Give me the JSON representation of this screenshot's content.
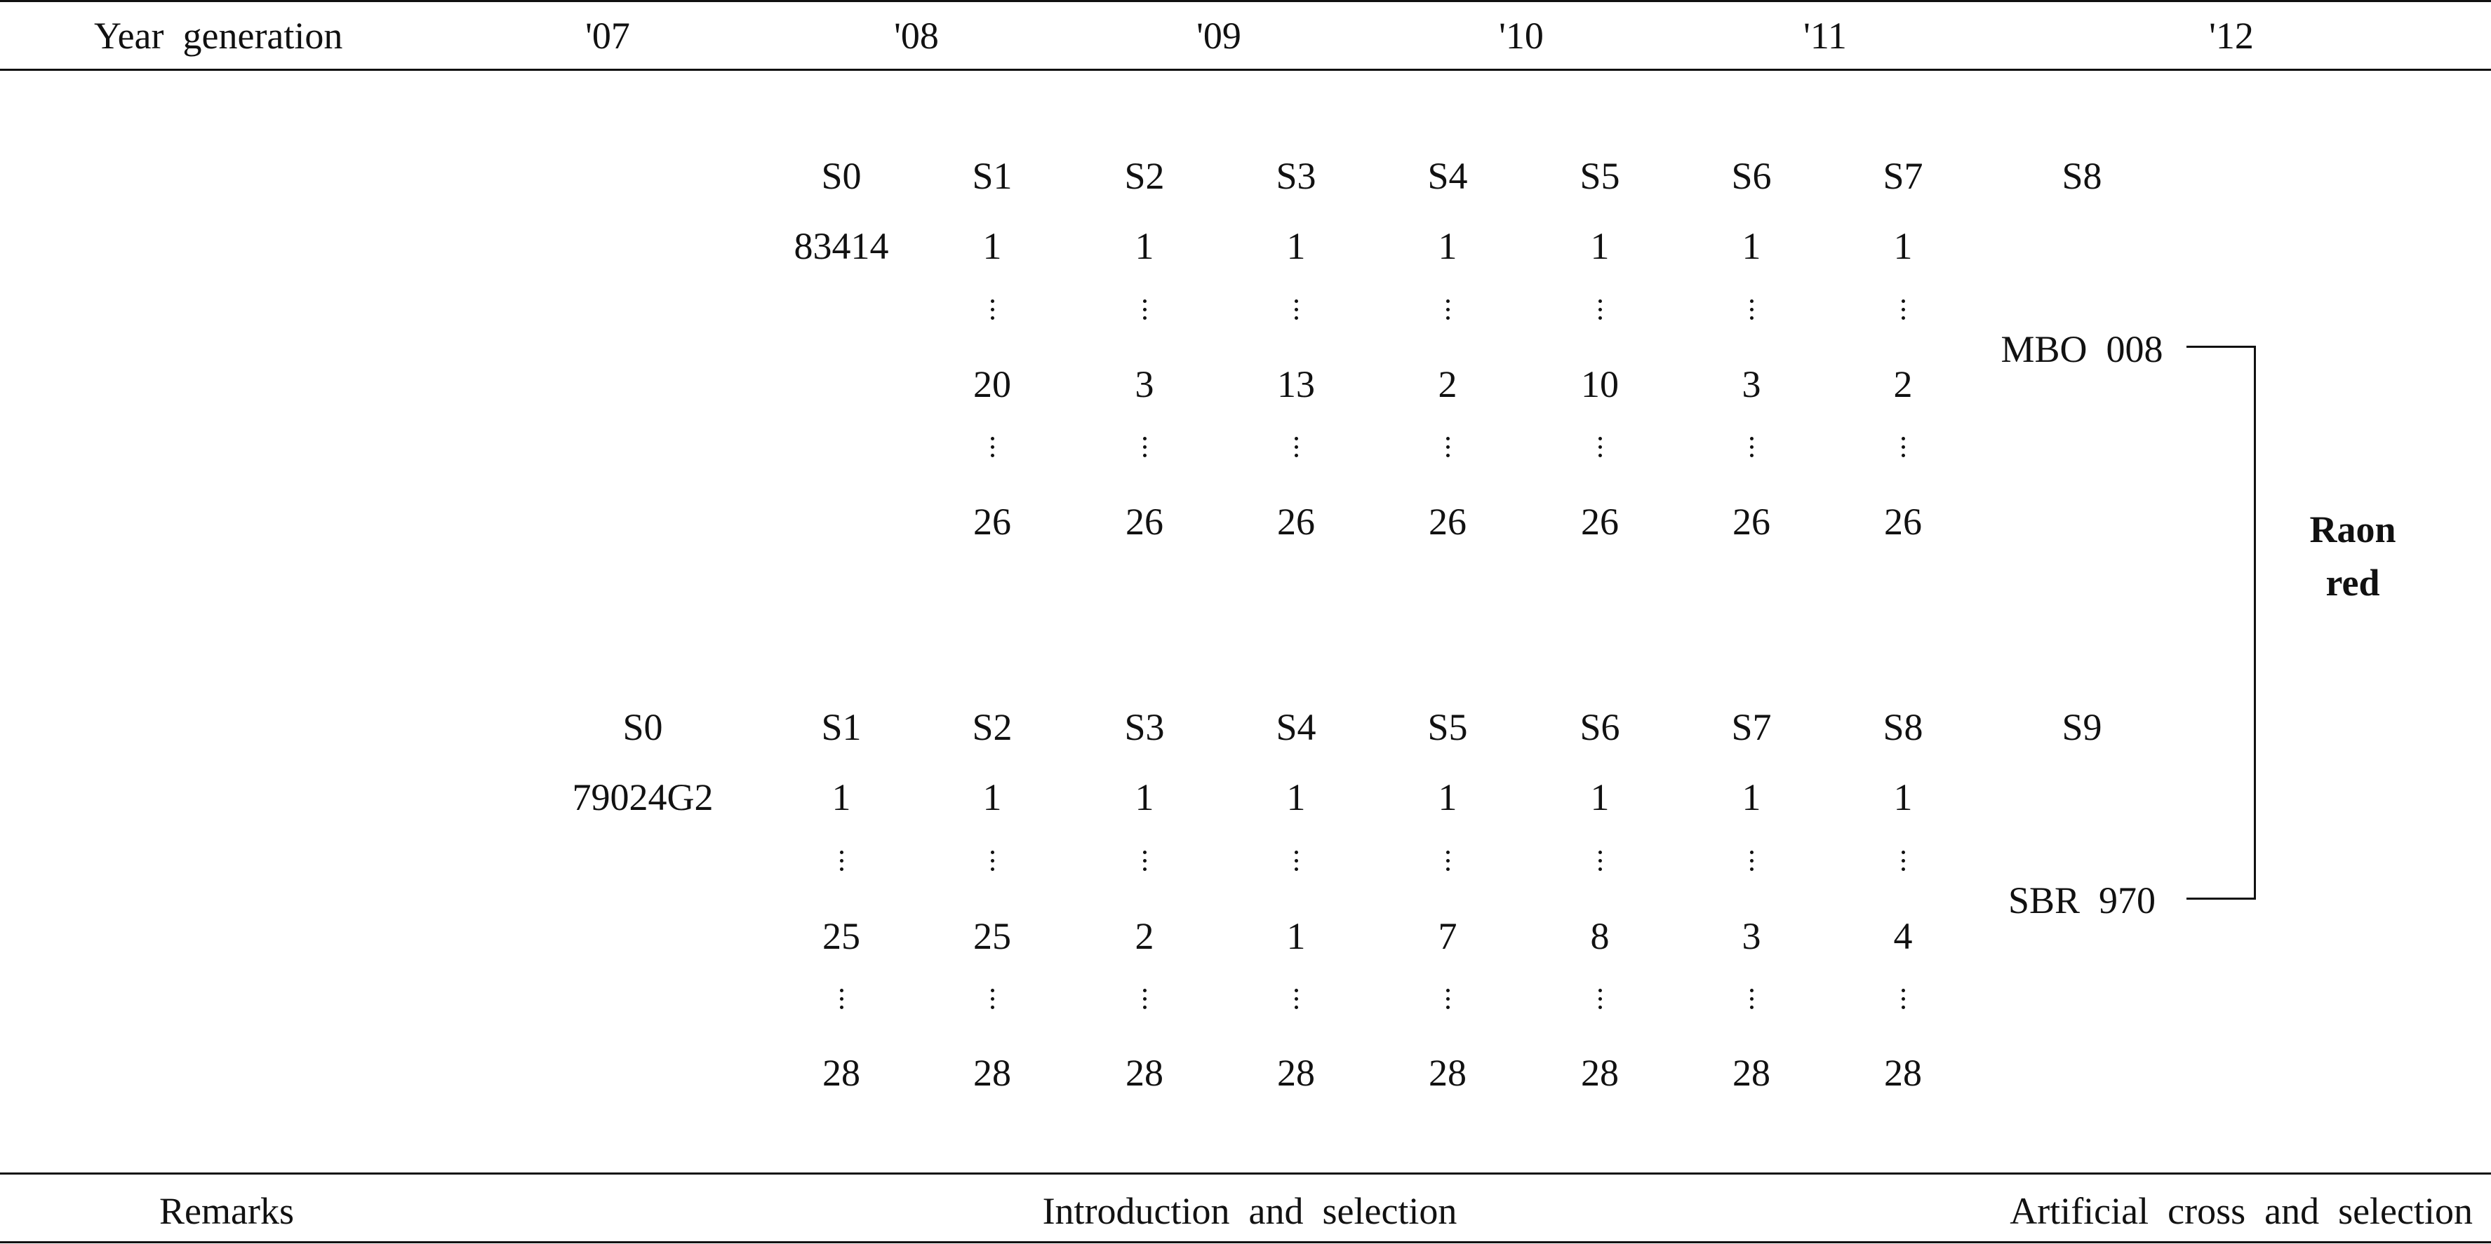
{
  "header": {
    "year_generation_label": "Year  generation",
    "years": [
      "'07",
      "'08",
      "'09",
      "'10",
      "'11",
      "'12"
    ]
  },
  "lineage_top": {
    "generations": [
      "S0",
      "S1",
      "S2",
      "S3",
      "S4",
      "S5",
      "S6",
      "S7",
      "S8"
    ],
    "origin": "83414",
    "first_row": [
      "1",
      "1",
      "1",
      "1",
      "1",
      "1",
      "1"
    ],
    "selected_row": [
      "20",
      "3",
      "13",
      "2",
      "10",
      "3",
      "2"
    ],
    "last_row": [
      "26",
      "26",
      "26",
      "26",
      "26",
      "26",
      "26"
    ],
    "line_name": "MBO  008"
  },
  "lineage_bottom": {
    "generations": [
      "S0",
      "S1",
      "S2",
      "S3",
      "S4",
      "S5",
      "S6",
      "S7",
      "S8",
      "S9"
    ],
    "origin": "79024G2",
    "first_row": [
      "1",
      "1",
      "1",
      "1",
      "1",
      "1",
      "1",
      "1"
    ],
    "selected_row": [
      "25",
      "25",
      "2",
      "1",
      "7",
      "8",
      "3",
      "4"
    ],
    "last_row": [
      "28",
      "28",
      "28",
      "28",
      "28",
      "28",
      "28",
      "28"
    ],
    "line_name": "SBR  970"
  },
  "cultivar": {
    "name_line1": "Raon",
    "name_line2": "red"
  },
  "footer": {
    "remarks_label": "Remarks",
    "introduction_label": "Introduction  and  selection",
    "artificial_label": "Artificial  cross  and  selection"
  }
}
